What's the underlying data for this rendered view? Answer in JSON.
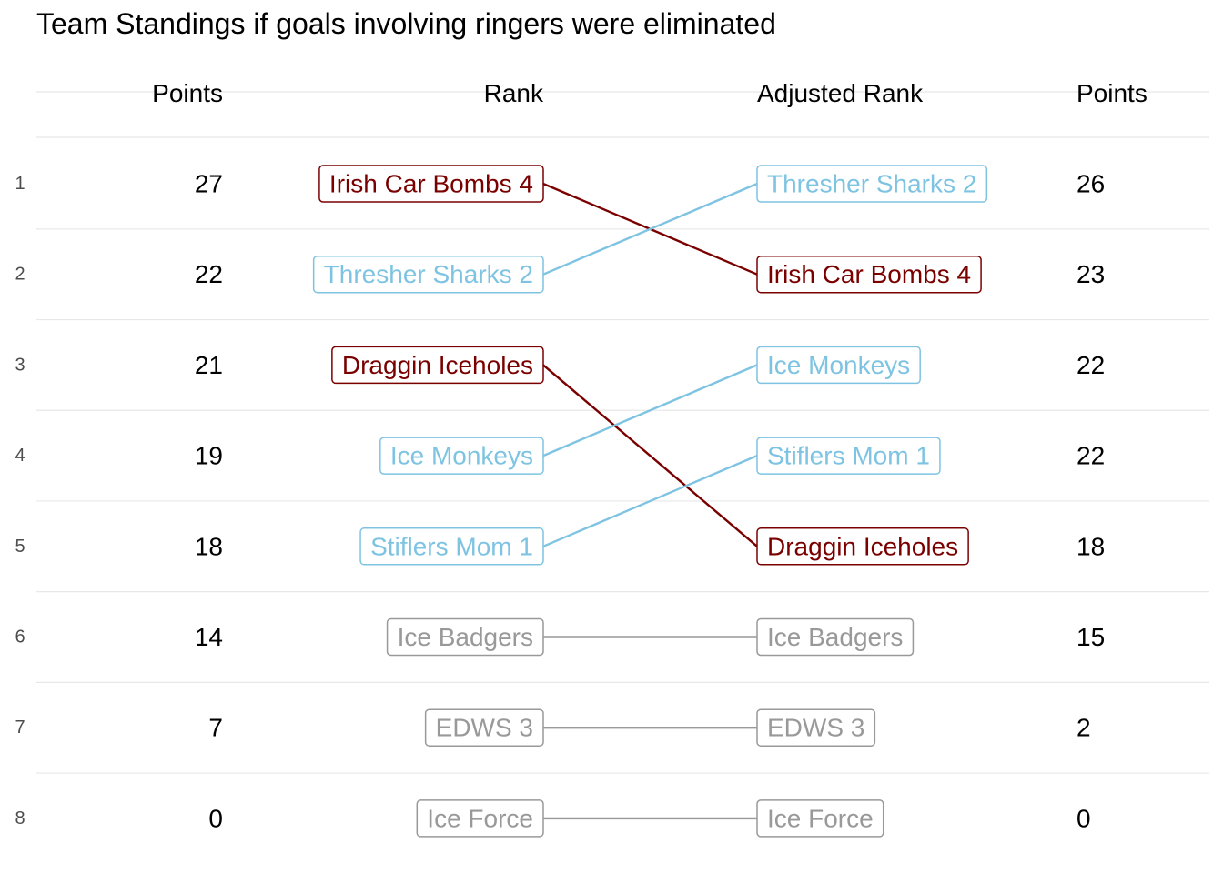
{
  "chart_data": {
    "type": "slope",
    "title": "Team Standings if goals involving ringers were eliminated",
    "column_headers": {
      "left_points": "Points",
      "rank": "Rank",
      "adjusted_rank": "Adjusted Rank",
      "right_points": "Points"
    },
    "rank_labels": [
      "1",
      "2",
      "3",
      "4",
      "5",
      "6",
      "7",
      "8"
    ],
    "teams": [
      {
        "name": "Irish Car Bombs 4",
        "rank": 1,
        "points": 27,
        "adjusted_rank": 2,
        "adjusted_points": 23,
        "color": "#7a0000"
      },
      {
        "name": "Thresher Sharks 2",
        "rank": 2,
        "points": 22,
        "adjusted_rank": 1,
        "adjusted_points": 26,
        "color": "#7ec4e2"
      },
      {
        "name": "Draggin Iceholes",
        "rank": 3,
        "points": 21,
        "adjusted_rank": 5,
        "adjusted_points": 18,
        "color": "#7a0000"
      },
      {
        "name": "Ice Monkeys",
        "rank": 4,
        "points": 19,
        "adjusted_rank": 3,
        "adjusted_points": 22,
        "color": "#7ec4e2"
      },
      {
        "name": "Stiflers Mom 1",
        "rank": 5,
        "points": 18,
        "adjusted_rank": 4,
        "adjusted_points": 22,
        "color": "#7ec4e2"
      },
      {
        "name": "Ice Badgers",
        "rank": 6,
        "points": 14,
        "adjusted_rank": 6,
        "adjusted_points": 15,
        "color": "#999999"
      },
      {
        "name": "EDWS 3",
        "rank": 7,
        "points": 7,
        "adjusted_rank": 7,
        "adjusted_points": 2,
        "color": "#999999"
      },
      {
        "name": "Ice Force",
        "rank": 8,
        "points": 0,
        "adjusted_rank": 8,
        "adjusted_points": 0,
        "color": "#999999"
      }
    ]
  }
}
